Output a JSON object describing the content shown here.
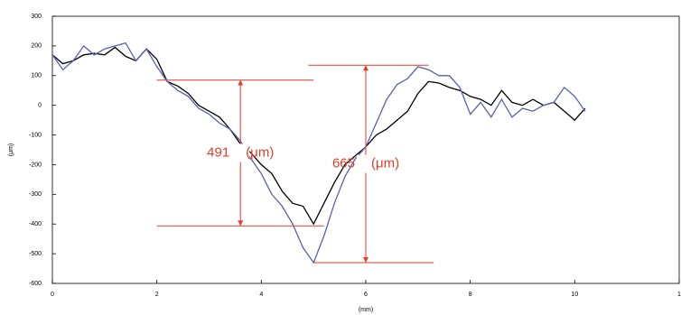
{
  "chart_data": {
    "type": "line",
    "x_label": "(mm)",
    "y_label": "(μm)",
    "xlim": [
      0,
      12
    ],
    "xticks": [
      0,
      2,
      4,
      6,
      8,
      10,
      {
        "value": 12,
        "label": "1"
      }
    ],
    "ylim": [
      -600,
      300
    ],
    "yticks": [
      -600,
      -500,
      -400,
      -300,
      -200,
      -100,
      0,
      100,
      200,
      300
    ],
    "grid": false,
    "x": [
      0,
      0.2,
      0.4,
      0.6,
      0.8,
      1,
      1.2,
      1.4,
      1.6,
      1.8,
      2,
      2.2,
      2.4,
      2.6,
      2.8,
      3,
      3.2,
      3.4,
      3.6,
      3.8,
      4,
      4.2,
      4.4,
      4.6,
      4.8,
      5,
      5.2,
      5.4,
      5.6,
      5.8,
      6,
      6.2,
      6.4,
      6.6,
      6.8,
      7,
      7.2,
      7.4,
      7.6,
      7.8,
      8,
      8.2,
      8.4,
      8.6,
      8.8,
      9,
      9.2,
      9.4,
      9.6,
      9.8,
      10,
      10.2
    ],
    "series": [
      {
        "color": "#000000",
        "values": [
          170,
          140,
          150,
          170,
          175,
          170,
          195,
          165,
          150,
          190,
          155,
          80,
          65,
          40,
          0,
          -20,
          -40,
          -80,
          -130,
          -160,
          -200,
          -230,
          -290,
          -330,
          -340,
          -400,
          -330,
          -260,
          -200,
          -170,
          -140,
          -100,
          -80,
          -50,
          -20,
          40,
          80,
          75,
          60,
          50,
          30,
          20,
          0,
          50,
          10,
          0,
          20,
          0,
          10,
          -20,
          -50,
          -10
        ]
      },
      {
        "color": "#5561b0",
        "values": [
          170,
          120,
          150,
          200,
          170,
          190,
          200,
          210,
          150,
          190,
          130,
          80,
          50,
          30,
          -10,
          -30,
          -60,
          -80,
          -120,
          -180,
          -230,
          -300,
          -340,
          -400,
          -480,
          -530,
          -440,
          -330,
          -240,
          -180,
          -140,
          -60,
          20,
          70,
          90,
          130,
          120,
          100,
          100,
          60,
          -30,
          10,
          -40,
          20,
          -40,
          -10,
          -20,
          0,
          10,
          60,
          30,
          -20
        ]
      }
    ],
    "annotations": [
      {
        "text": "491",
        "unit": "(μm)",
        "color": "#e23c2a",
        "x": 3.6,
        "top": 85,
        "bottom": -406,
        "top_xrange": [
          2.0,
          5.0
        ],
        "bottom_xrange": [
          2.0,
          5.2
        ]
      },
      {
        "text": "665",
        "unit": "(μm)",
        "color": "#e23c2a",
        "x": 6.0,
        "top": 135,
        "bottom": -530,
        "top_xrange": [
          4.9,
          7.2
        ],
        "bottom_xrange": [
          5.0,
          7.3
        ]
      }
    ]
  }
}
